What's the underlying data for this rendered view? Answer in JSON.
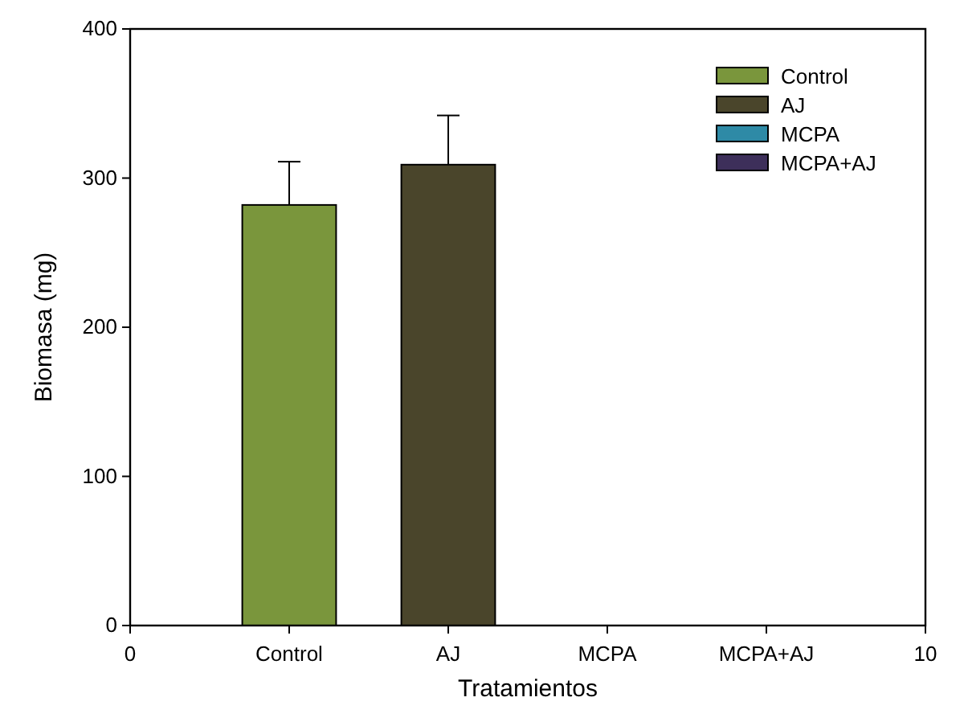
{
  "chart_data": {
    "type": "bar",
    "xlabel": "Tratamientos",
    "ylabel": "Biomasa (mg)",
    "xlim": [
      0,
      10
    ],
    "xticks": [
      0,
      {
        "value": 2,
        "label": "Control"
      },
      {
        "value": 4,
        "label": "AJ"
      },
      {
        "value": 6,
        "label": "MCPA"
      },
      {
        "value": 8,
        "label": "MCPA+AJ"
      },
      10
    ],
    "ylim": [
      0,
      400
    ],
    "yticks": [
      0,
      100,
      200,
      300,
      400
    ],
    "series": [
      {
        "name": "Control",
        "color": "#7a963c",
        "x": [
          2
        ],
        "values": [
          282
        ],
        "errors": [
          29
        ]
      },
      {
        "name": "AJ",
        "color": "#4a452b",
        "x": [
          4
        ],
        "values": [
          309
        ],
        "errors": [
          33
        ]
      },
      {
        "name": "MCPA",
        "color": "#2e8aa6"
      },
      {
        "name": "MCPA+AJ",
        "color": "#3d2f5a"
      }
    ],
    "legend": "top right",
    "grid": false
  }
}
